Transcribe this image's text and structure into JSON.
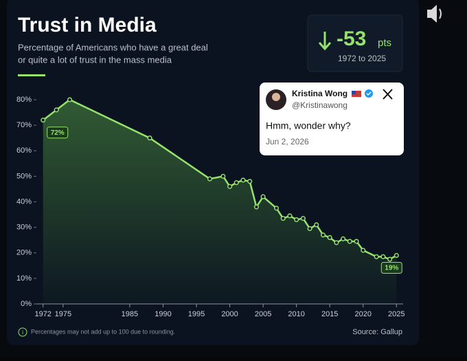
{
  "chart_data": {
    "type": "line",
    "title": "Trust in Media",
    "subtitle": "Percentage of Americans who have a great deal",
    "subtitle_line2": "or quite a lot of trust in the mass media",
    "badge": {
      "value": -53,
      "unit": "pts",
      "period": "1972 to 2025"
    },
    "footnote": "Percentages may not add up to 100 due to rounding.",
    "source": "Source: Gallup",
    "color": "#95e26d",
    "grid": false,
    "x": [
      1972,
      1974,
      1976,
      1988,
      1997,
      1999,
      2000,
      2001,
      2002,
      2003,
      2004,
      2005,
      2007,
      2008,
      2009,
      2010,
      2011,
      2012,
      2013,
      2014,
      2015,
      2016,
      2017,
      2018,
      2019,
      2020,
      2022,
      2023,
      2024,
      2025
    ],
    "values": [
      72,
      76,
      80,
      65,
      49,
      50,
      46,
      47.5,
      48.5,
      48,
      38,
      42,
      37.5,
      33.5,
      34.5,
      33,
      33.5,
      29.5,
      31,
      27,
      26,
      24,
      25.5,
      24.5,
      24.5,
      21,
      18.5,
      18.5,
      17.5,
      19
    ],
    "value_labels": [
      "72%",
      null,
      null,
      null,
      null,
      null,
      null,
      null,
      null,
      null,
      null,
      null,
      null,
      null,
      null,
      null,
      null,
      null,
      null,
      null,
      null,
      null,
      null,
      null,
      null,
      null,
      null,
      null,
      null,
      "19%"
    ],
    "xlim": [
      1971,
      2026
    ],
    "xticks": [
      1972,
      1975,
      1985,
      1990,
      1995,
      2000,
      2005,
      2010,
      2015,
      2020,
      2025
    ],
    "ylim": [
      0,
      80
    ],
    "yticks": [
      {
        "value": 0,
        "label": "0%"
      },
      {
        "value": 10,
        "label": "10%"
      },
      {
        "value": 20,
        "label": "20%"
      },
      {
        "value": 30,
        "label": "30%"
      },
      {
        "value": 40,
        "label": "40%"
      },
      {
        "value": 50,
        "label": "50%"
      },
      {
        "value": 60,
        "label": "60%"
      },
      {
        "value": 70,
        "label": "70%"
      },
      {
        "value": 80,
        "label": "80%"
      }
    ]
  },
  "tweet": {
    "name": "Kristina Wong",
    "handle": "@Kristinawong",
    "text": "Hmm, wonder why?",
    "date": "Jun 2, 2026"
  }
}
